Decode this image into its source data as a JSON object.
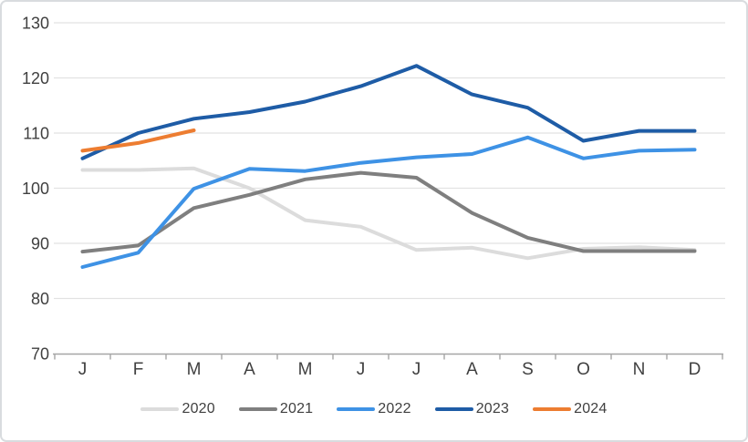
{
  "chart_data": {
    "type": "line",
    "title": "",
    "xlabel": "",
    "ylabel": "",
    "categories": [
      "J",
      "F",
      "M",
      "A",
      "M",
      "J",
      "J",
      "A",
      "S",
      "O",
      "N",
      "D"
    ],
    "ylim": [
      70,
      130
    ],
    "yticks": [
      70,
      80,
      90,
      100,
      110,
      120,
      130
    ],
    "grid": true,
    "legend_position": "bottom-center",
    "series": [
      {
        "name": "2020",
        "color": "#dcdcdc",
        "values": [
          103.3,
          103.3,
          103.6,
          100,
          94.2,
          93,
          88.8,
          89.2,
          87.3,
          89,
          89.3,
          88.8
        ]
      },
      {
        "name": "2021",
        "color": "#7f7f7f",
        "values": [
          88.5,
          89.6,
          96.4,
          98.8,
          101.6,
          102.8,
          101.9,
          95.5,
          91,
          88.6,
          88.6,
          88.6
        ]
      },
      {
        "name": "2022",
        "color": "#3e92e5",
        "values": [
          85.7,
          88.3,
          99.9,
          103.5,
          103.1,
          104.6,
          105.6,
          106.2,
          109.2,
          105.4,
          106.8,
          107
        ]
      },
      {
        "name": "2023",
        "color": "#1e5ca6",
        "values": [
          105.4,
          110,
          112.6,
          113.8,
          115.7,
          118.5,
          122.2,
          117,
          114.6,
          108.6,
          110.4,
          110.4
        ]
      },
      {
        "name": "2024",
        "color": "#ed7d31",
        "values": [
          106.8,
          108.2,
          110.5,
          null,
          null,
          null,
          null,
          null,
          null,
          null,
          null,
          null
        ]
      }
    ]
  },
  "style": {
    "background": "#ffffff",
    "border_color": "#d9dcdf",
    "gridline_color": "#e2e2e2",
    "axis_color": "#a6a6a6",
    "text_color": "#404040"
  }
}
